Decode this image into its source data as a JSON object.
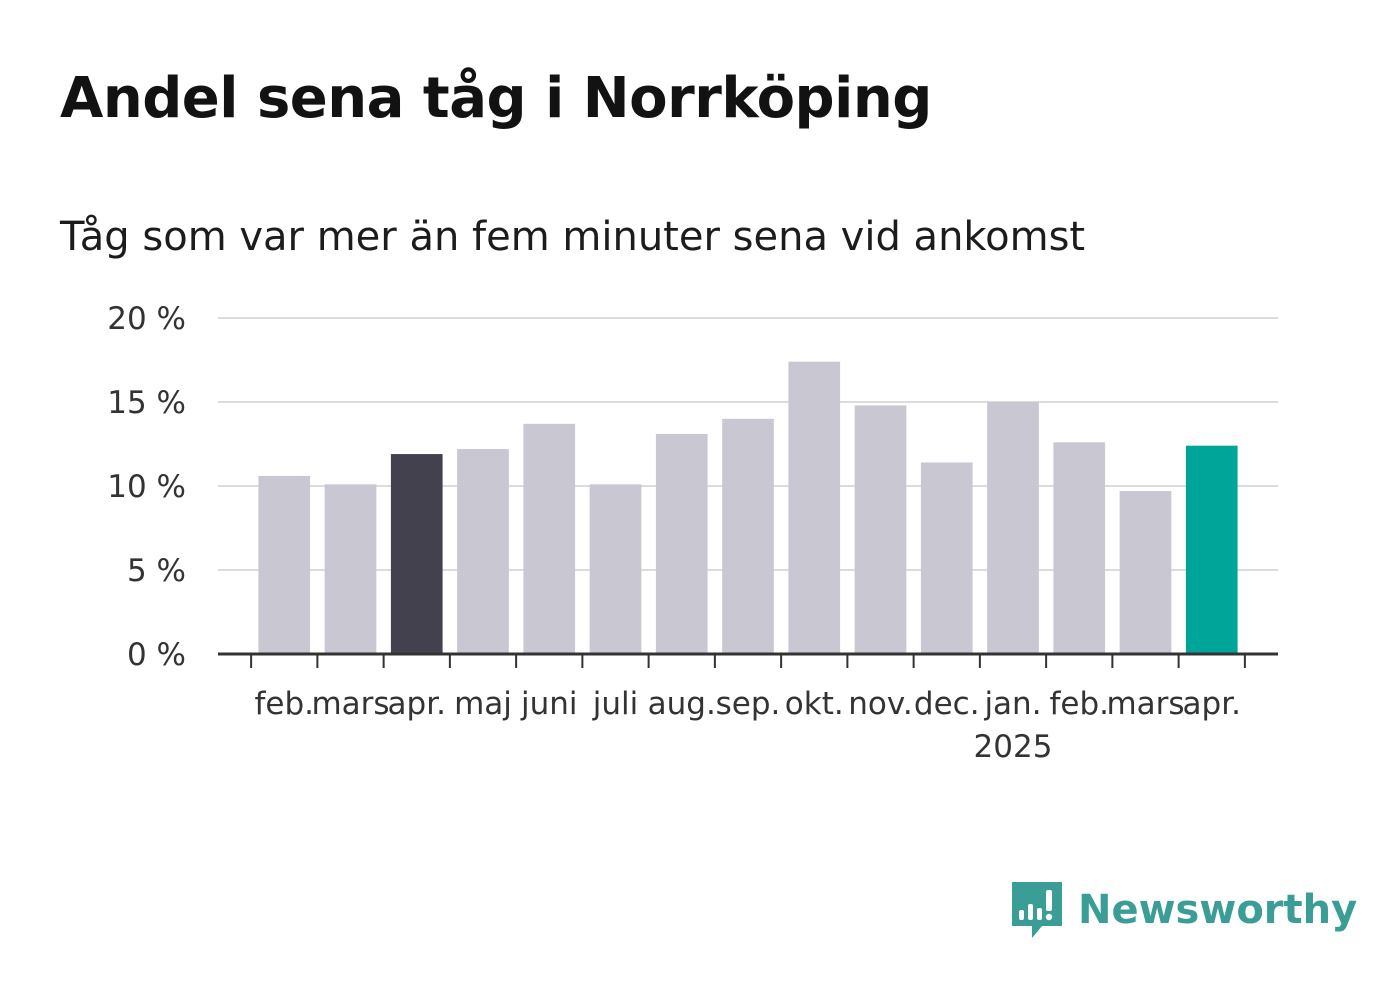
{
  "header": {
    "title": "Andel sena tåg i Norrköping",
    "subtitle": "Tåg som var mer än fem minuter sena vid ankomst"
  },
  "brand": {
    "name": "Newsworthy",
    "icon": "newsworthy-logo-icon",
    "color": "#3a9e97"
  },
  "chart_data": {
    "type": "bar",
    "categories": [
      "feb.",
      "mars",
      "apr.",
      "maj",
      "juni",
      "juli",
      "aug.",
      "sep.",
      "okt.",
      "nov.",
      "dec.",
      "jan.",
      "feb.",
      "mars",
      "apr."
    ],
    "year_labels": [
      {
        "index": 11,
        "label": "2025"
      }
    ],
    "values": [
      10.6,
      10.1,
      11.9,
      12.2,
      13.7,
      10.1,
      13.1,
      14.0,
      17.4,
      14.8,
      11.4,
      15.0,
      12.6,
      9.7,
      12.4
    ],
    "ylim": [
      0,
      20
    ],
    "yticks": [
      {
        "value": 0,
        "label": "0 %"
      },
      {
        "value": 5,
        "label": "5 %"
      },
      {
        "value": 10,
        "label": "10 %"
      },
      {
        "value": 15,
        "label": "15 %"
      },
      {
        "value": 20,
        "label": "20 %"
      }
    ],
    "grid": true,
    "colors": {
      "default": "#c8c7d2",
      "highlight_prev_year": "#42414d",
      "highlight_current": "#00a59a"
    },
    "highlights": [
      {
        "index": 2,
        "color": "#42414d"
      },
      {
        "index": 14,
        "color": "#00a59a"
      }
    ]
  }
}
